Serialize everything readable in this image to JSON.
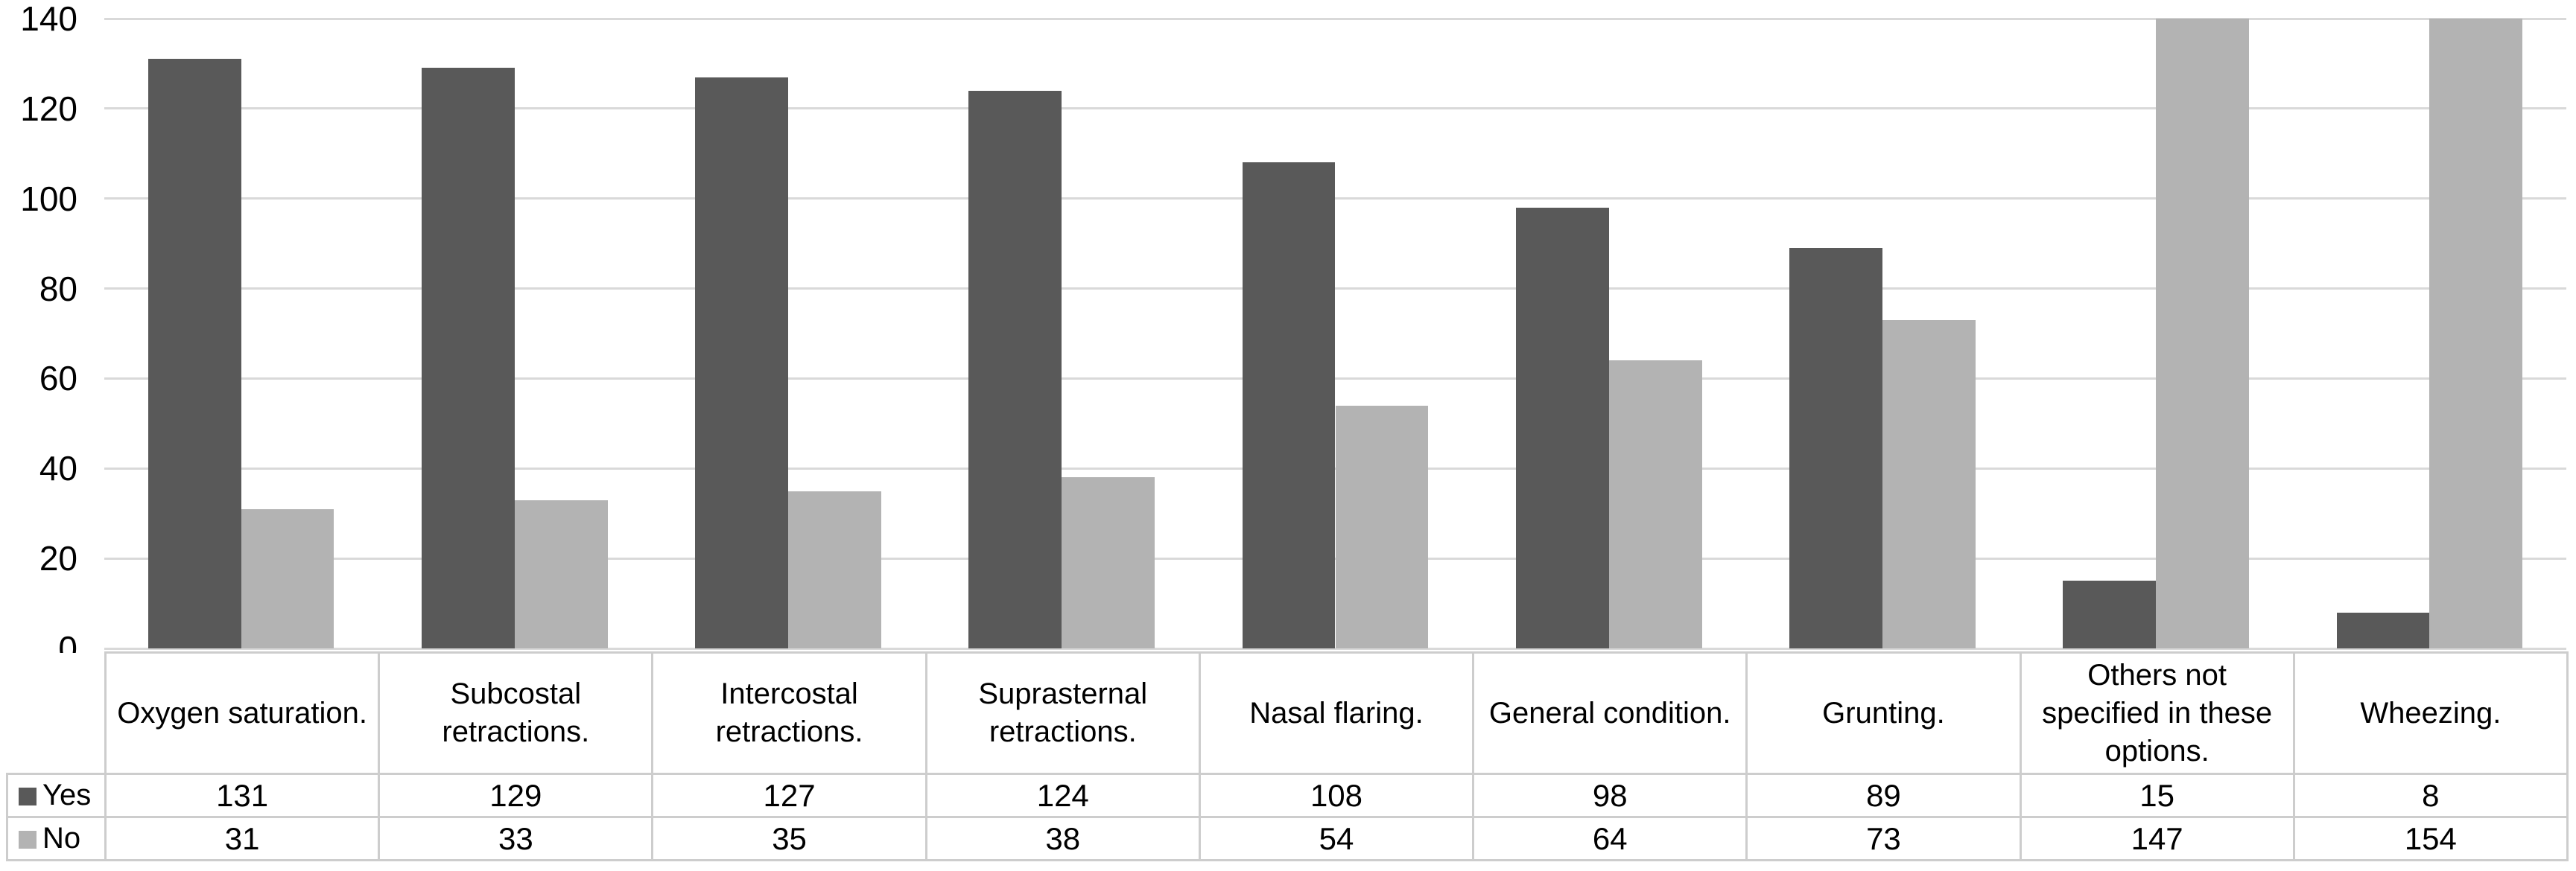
{
  "colors": {
    "background": "#ffffff",
    "text": "#000000",
    "gridline": "#d9d9d9",
    "table_border": "#cdcdcd",
    "series_yes": "#595959",
    "series_no": "#b3b3b3"
  },
  "chart_data": {
    "type": "bar",
    "title": "",
    "xlabel": "",
    "ylabel": "",
    "categories": [
      "Oxygen saturation.",
      "Subcostal retractions.",
      "Intercostal retractions.",
      "Suprasternal retractions.",
      "Nasal flaring.",
      "General condition.",
      "Grunting.",
      "Others not specified in these options.",
      "Wheezing."
    ],
    "series": [
      {
        "name": "Yes",
        "color": "#595959",
        "values": [
          131,
          129,
          127,
          124,
          108,
          98,
          89,
          15,
          8
        ]
      },
      {
        "name": "No",
        "color": "#b3b3b3",
        "values": [
          31,
          33,
          35,
          38,
          54,
          64,
          73,
          147,
          154
        ]
      }
    ],
    "ylim": [
      0,
      140
    ],
    "yticks": [
      0,
      20,
      40,
      60,
      80,
      100,
      120,
      140
    ],
    "grid": true,
    "bars_exceeding_ymax_clipped": true,
    "legend_position": "data-table-left",
    "data_table_shown": true
  }
}
